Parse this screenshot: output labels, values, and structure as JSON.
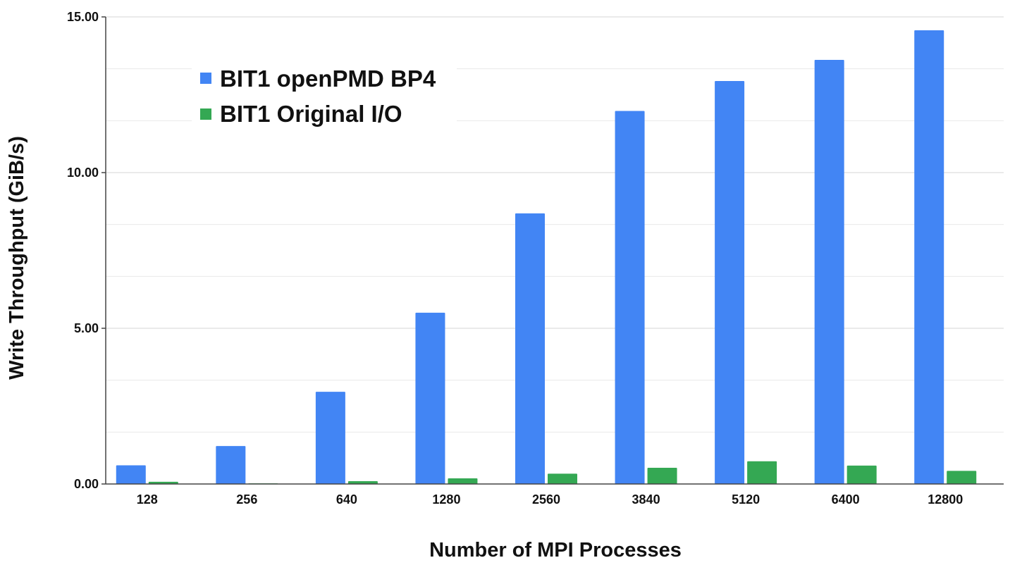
{
  "chart_data": {
    "type": "bar",
    "title": "",
    "xlabel": "Number of MPI Processes",
    "ylabel": "Write Throughput (GiB/s)",
    "ylim": [
      0,
      15
    ],
    "yticks": [
      "0.00",
      "5.00",
      "10.00",
      "15.00"
    ],
    "grid": true,
    "legend_position": "top-left",
    "categories": [
      "128",
      "256",
      "640",
      "1280",
      "2560",
      "3840",
      "5120",
      "6400",
      "12800"
    ],
    "series": [
      {
        "name": "BIT1 openPMD BP4",
        "color": "#4285f4",
        "values": [
          0.6,
          1.22,
          2.96,
          5.5,
          8.69,
          11.98,
          12.94,
          13.62,
          14.57
        ]
      },
      {
        "name": "BIT1 Original I/O",
        "color": "#34a853",
        "values": [
          0.07,
          0.02,
          0.09,
          0.18,
          0.33,
          0.52,
          0.73,
          0.59,
          0.42
        ]
      }
    ]
  }
}
